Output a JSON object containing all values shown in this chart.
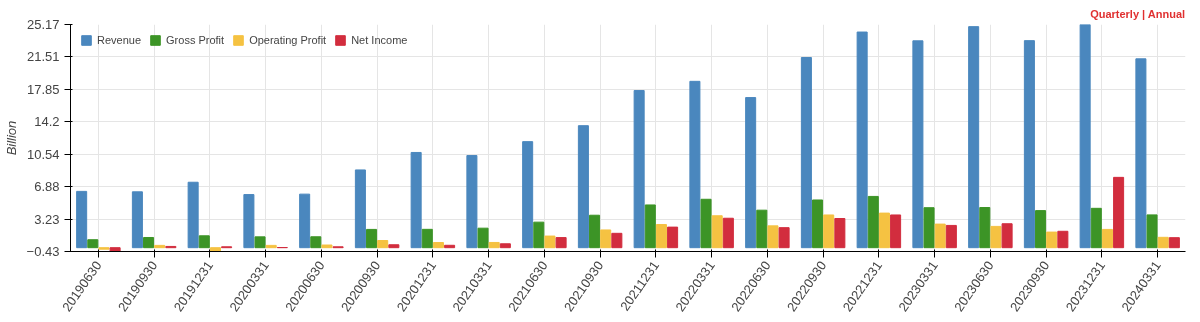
{
  "chart_data": {
    "type": "bar",
    "ylabel": "Billion",
    "annotations": [
      "Quarterly | Annual"
    ],
    "categories": [
      "20190630",
      "20190930",
      "20191231",
      "20200331",
      "20200630",
      "20200930",
      "20201231",
      "20210331",
      "20210630",
      "20210930",
      "20211231",
      "20220331",
      "20220630",
      "20220930",
      "20221231",
      "20230331",
      "20230630",
      "20230930",
      "20231231",
      "20240331"
    ],
    "series": [
      {
        "name": "Revenue",
        "color": "#4a87be",
        "values": [
          6.35,
          6.3,
          7.38,
          5.99,
          6.04,
          8.77,
          10.74,
          10.39,
          11.96,
          13.76,
          17.72,
          18.76,
          16.93,
          21.45,
          24.32,
          23.33,
          24.93,
          23.35,
          25.17,
          21.3
        ]
      },
      {
        "name": "Gross Profit",
        "color": "#3c9426",
        "values": [
          0.9,
          1.15,
          1.34,
          1.22,
          1.23,
          2.06,
          2.07,
          2.2,
          2.88,
          3.66,
          4.82,
          5.46,
          4.23,
          5.38,
          5.78,
          4.51,
          4.53,
          4.18,
          4.44,
          3.7
        ]
      },
      {
        "name": "Operating Profit",
        "color": "#f5c242",
        "values": [
          -0.17,
          0.26,
          -0.4,
          0.26,
          0.3,
          0.81,
          0.58,
          0.59,
          1.31,
          2.0,
          2.61,
          3.6,
          2.46,
          3.69,
          3.9,
          2.66,
          2.4,
          1.76,
          2.06,
          1.17
        ]
      },
      {
        "name": "Net Income",
        "color": "#d22d3e",
        "values": [
          -0.41,
          0.14,
          0.1,
          0.02,
          0.1,
          0.33,
          0.27,
          0.44,
          1.14,
          1.62,
          2.32,
          3.32,
          2.26,
          3.29,
          3.69,
          2.51,
          2.7,
          1.85,
          7.93,
          1.13
        ]
      }
    ],
    "ylim": [
      -0.43,
      25.17
    ],
    "yticks": [
      -0.43,
      3.23,
      6.88,
      10.54,
      14.2,
      17.85,
      21.51,
      25.17
    ],
    "grid": true,
    "legend": "top left"
  }
}
